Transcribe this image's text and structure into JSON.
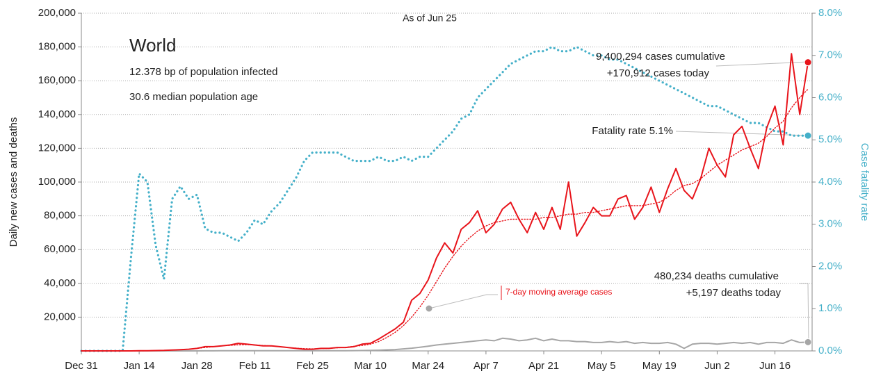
{
  "chart_data": {
    "type": "line",
    "title": "World",
    "subtitle": "As of Jun 25",
    "ylabel": "Daily new cases and deaths",
    "y2label": "Case fatality rate",
    "annotations": [
      "12.378 bp of population infected",
      "30.6 median population age",
      "9,400,294 cases cumulative",
      "+170,912 cases today",
      "Fatality rate 5.1%",
      "480,234 deaths cumulative",
      "+5,197 deaths today",
      "7-day moving average cases"
    ],
    "categories": [
      "Dec 31",
      null,
      null,
      null,
      null,
      null,
      null,
      "Jan 14",
      null,
      null,
      null,
      null,
      null,
      null,
      "Jan 28",
      null,
      null,
      null,
      null,
      null,
      null,
      "Feb 11",
      null,
      null,
      null,
      null,
      null,
      null,
      "Feb 25",
      null,
      null,
      null,
      null,
      null,
      null,
      "Mar 10",
      null,
      null,
      null,
      null,
      null,
      null,
      "Mar 24",
      null,
      null,
      null,
      null,
      null,
      null,
      "Apr 7",
      null,
      null,
      null,
      null,
      null,
      null,
      "Apr 21",
      null,
      null,
      null,
      null,
      null,
      null,
      "May 5",
      null,
      null,
      null,
      null,
      null,
      null,
      "May 19",
      null,
      null,
      null,
      null,
      null,
      null,
      "Jun 2",
      null,
      null,
      null,
      null,
      null,
      null,
      "Jun 16",
      null,
      null,
      null,
      null
    ],
    "series": [
      {
        "name": "Daily new cases",
        "color": "#e8141b",
        "style": "solid",
        "values": [
          0,
          0,
          0,
          0,
          0,
          0,
          0,
          100,
          100,
          200,
          300,
          500,
          700,
          1000,
          1500,
          2500,
          2500,
          3000,
          3500,
          4500,
          4000,
          3500,
          3000,
          3000,
          2500,
          2000,
          1500,
          1000,
          1000,
          1500,
          1500,
          2000,
          2000,
          2500,
          4000,
          4500,
          7000,
          10000,
          13000,
          17000,
          30000,
          34000,
          42000,
          55000,
          64000,
          58000,
          72000,
          76000,
          83000,
          70000,
          75000,
          84000,
          88000,
          78000,
          70000,
          82000,
          72000,
          85000,
          72000,
          100000,
          68000,
          76000,
          85000,
          80000,
          80000,
          90000,
          92000,
          78000,
          85000,
          97000,
          82000,
          96000,
          108000,
          95000,
          90000,
          102000,
          120000,
          110000,
          103000,
          128000,
          133000,
          120000,
          108000,
          132000,
          145000,
          122000,
          176000,
          140000,
          170912
        ]
      },
      {
        "name": "7-day moving average cases",
        "color": "#e8141b",
        "style": "dotted",
        "values": [
          0,
          0,
          0,
          0,
          0,
          0,
          0,
          0,
          100,
          200,
          300,
          500,
          700,
          1000,
          1500,
          2000,
          2500,
          3000,
          3300,
          3600,
          3700,
          3500,
          3200,
          2900,
          2500,
          2000,
          1600,
          1300,
          1200,
          1300,
          1500,
          1800,
          2100,
          2700,
          3200,
          4000,
          5500,
          8000,
          11000,
          15000,
          20000,
          26000,
          33000,
          41000,
          49000,
          56000,
          62000,
          67000,
          71000,
          74000,
          76000,
          77000,
          78000,
          78000,
          78000,
          78000,
          79000,
          79000,
          80000,
          81000,
          81000,
          82000,
          82000,
          83000,
          84000,
          85000,
          86000,
          86000,
          86000,
          87000,
          88000,
          91000,
          95000,
          98000,
          99000,
          102000,
          106000,
          110000,
          113000,
          116000,
          119000,
          121000,
          123000,
          127000,
          132000,
          136000,
          144000,
          150000,
          155000
        ]
      },
      {
        "name": "Daily new deaths",
        "color": "#a6a6a6",
        "style": "solid",
        "values": [
          0,
          0,
          0,
          0,
          0,
          0,
          0,
          0,
          0,
          0,
          0,
          0,
          0,
          0,
          0,
          50,
          50,
          100,
          100,
          100,
          100,
          100,
          100,
          100,
          100,
          100,
          100,
          100,
          100,
          100,
          100,
          100,
          100,
          150,
          200,
          300,
          400,
          600,
          800,
          1200,
          1600,
          2200,
          2800,
          3500,
          4000,
          4500,
          5000,
          5500,
          6000,
          6500,
          6000,
          7500,
          7000,
          6000,
          6500,
          7500,
          6000,
          7000,
          6000,
          6000,
          5500,
          5500,
          5000,
          5000,
          5500,
          5000,
          5500,
          4500,
          5000,
          4500,
          4500,
          5000,
          4000,
          1500,
          4000,
          4500,
          4500,
          4000,
          4500,
          5000,
          4500,
          5000,
          4000,
          5000,
          5000,
          4500,
          6500,
          5000,
          5197
        ]
      },
      {
        "name": "Case fatality rate",
        "color": "#45b0c9",
        "style": "dotted",
        "axis": "y2",
        "values": [
          0,
          0,
          0,
          0,
          0,
          0,
          2.2,
          4.2,
          4.0,
          2.5,
          1.7,
          3.6,
          3.9,
          3.6,
          3.7,
          2.9,
          2.8,
          2.8,
          2.7,
          2.6,
          2.8,
          3.1,
          3.0,
          3.3,
          3.5,
          3.8,
          4.1,
          4.5,
          4.7,
          4.7,
          4.7,
          4.7,
          4.6,
          4.5,
          4.5,
          4.5,
          4.6,
          4.5,
          4.5,
          4.6,
          4.5,
          4.6,
          4.6,
          4.8,
          5.0,
          5.2,
          5.5,
          5.6,
          6.0,
          6.2,
          6.4,
          6.6,
          6.8,
          6.9,
          7.0,
          7.1,
          7.1,
          7.2,
          7.1,
          7.1,
          7.2,
          7.1,
          7.0,
          7.0,
          6.9,
          6.9,
          6.8,
          6.7,
          6.6,
          6.5,
          6.4,
          6.3,
          6.2,
          6.1,
          6.0,
          5.9,
          5.8,
          5.8,
          5.7,
          5.6,
          5.5,
          5.4,
          5.4,
          5.3,
          5.2,
          5.2,
          5.1,
          5.1,
          5.1
        ]
      }
    ],
    "ylim": [
      0,
      200000
    ],
    "yticks": [
      {
        "value": 20000,
        "label": "20,000"
      },
      {
        "value": 40000,
        "label": "40,000"
      },
      {
        "value": 60000,
        "label": "60,000"
      },
      {
        "value": 80000,
        "label": "80,000"
      },
      {
        "value": 100000,
        "label": "100,000"
      },
      {
        "value": 120000,
        "label": "120,000"
      },
      {
        "value": 140000,
        "label": "140,000"
      },
      {
        "value": 160000,
        "label": "160,000"
      },
      {
        "value": 180000,
        "label": "180,000"
      },
      {
        "value": 200000,
        "label": "200,000"
      }
    ],
    "y2lim": [
      0,
      8
    ],
    "y2ticks": [
      {
        "value": 0,
        "label": "0.0%"
      },
      {
        "value": 1,
        "label": "1.0%"
      },
      {
        "value": 2,
        "label": "2.0%"
      },
      {
        "value": 3,
        "label": "3.0%"
      },
      {
        "value": 4,
        "label": "4.0%"
      },
      {
        "value": 5,
        "label": "5.0%"
      },
      {
        "value": 6,
        "label": "6.0%"
      },
      {
        "value": 7,
        "label": "7.0%"
      },
      {
        "value": 8,
        "label": "8.0%"
      }
    ],
    "grid": true
  }
}
